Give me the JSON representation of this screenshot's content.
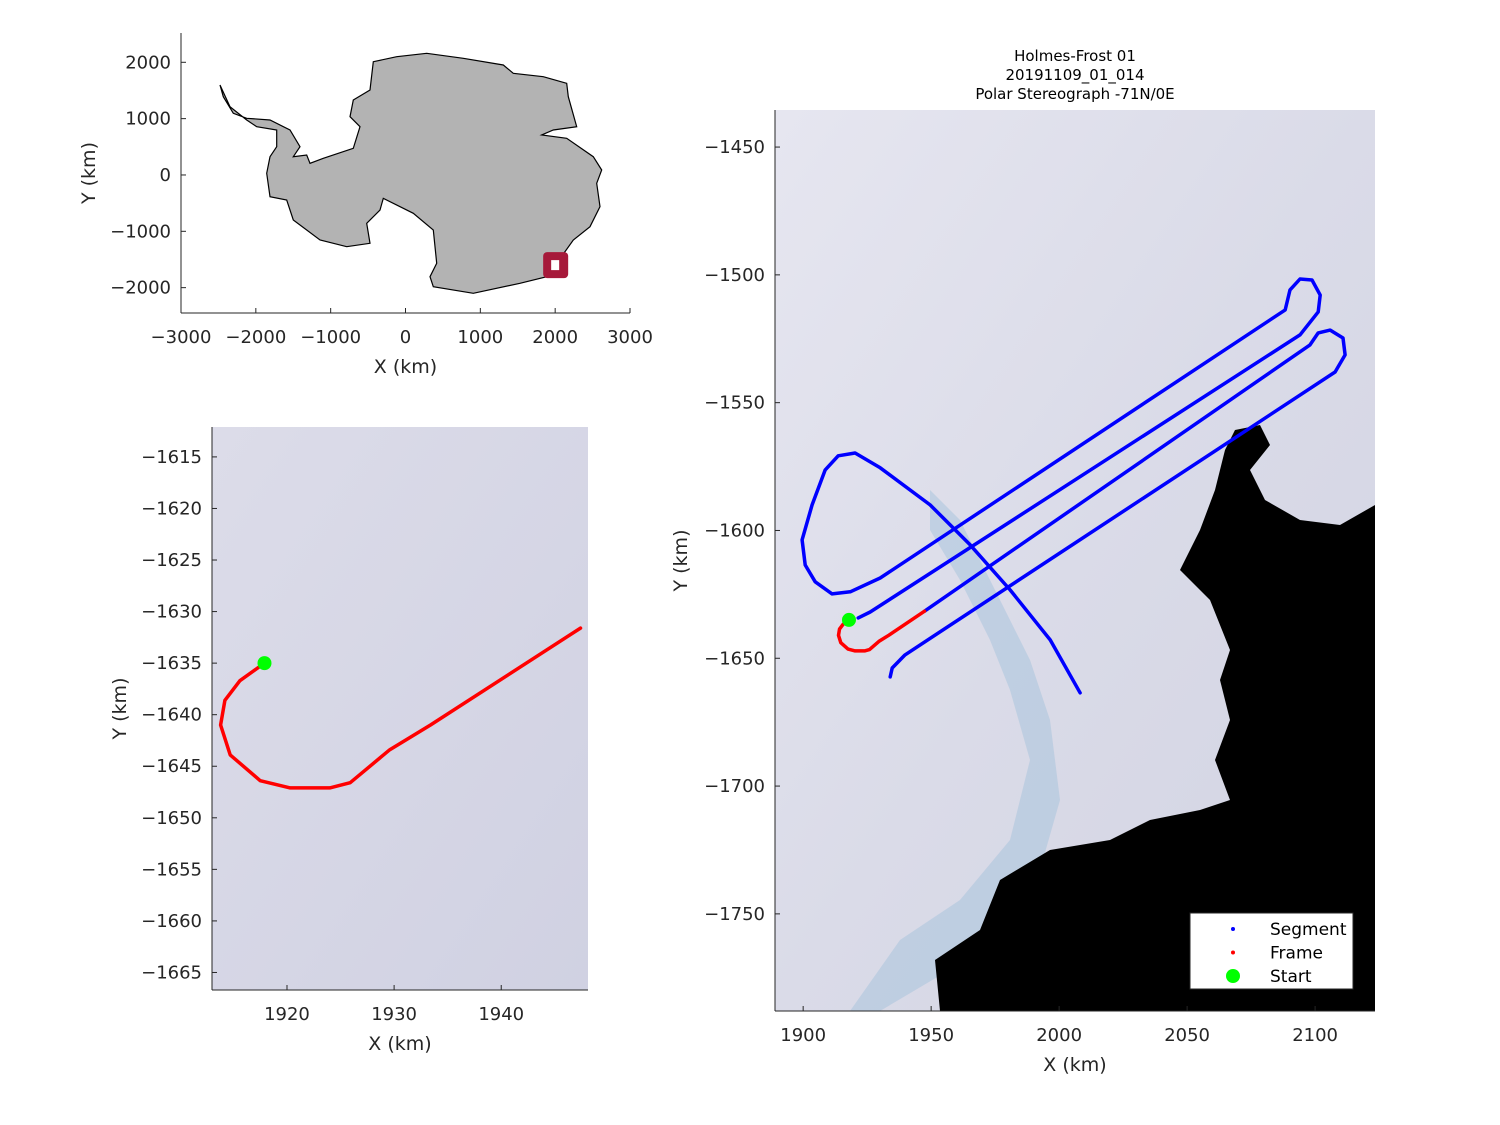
{
  "chart_data": [
    {
      "type": "map-inset",
      "xlabel": "X (km)",
      "ylabel": "Y (km)",
      "xlim": [
        -3000,
        3000
      ],
      "ylim": [
        -2450,
        2520
      ],
      "xticks": [
        -3000,
        -2000,
        -1000,
        0,
        1000,
        2000,
        3000
      ],
      "yticks": [
        2000,
        1000,
        0,
        -1000,
        -2000
      ],
      "land_color": "#b3b3b3",
      "marker": {
        "x": 2000,
        "y": -1600,
        "color": "#a6193a"
      }
    },
    {
      "type": "line",
      "xlabel": "X (km)",
      "ylabel": "Y (km)",
      "xlim": [
        1913,
        1948.1
      ],
      "ylim": [
        -1666.7,
        -1612.1
      ],
      "xticks": [
        1920,
        1930,
        1940
      ],
      "yticks": [
        -1615,
        -1620,
        -1625,
        -1630,
        -1635,
        -1640,
        -1645,
        -1650,
        -1655,
        -1660,
        -1665
      ],
      "background_color": "#d7d8e7",
      "frame": {
        "color": "#ff0000",
        "x": [
          1917.9,
          1915.6,
          1914.2,
          1913.8,
          1914.7,
          1917.5,
          1920.3,
          1924.0,
          1925.9,
          1929.6,
          1933.4,
          1947.4
        ],
        "y": [
          -1635.0,
          -1636.7,
          -1638.6,
          -1641.0,
          -1643.9,
          -1646.4,
          -1647.1,
          -1647.1,
          -1646.6,
          -1643.4,
          -1641.0,
          -1631.6
        ]
      },
      "start": {
        "color": "#00ff00",
        "x": 1917.9,
        "y": -1635.0
      }
    },
    {
      "type": "line",
      "title": [
        "Holmes-Frost 01",
        "20191109_01_014",
        "Polar Stereograph -71N/0E"
      ],
      "xlabel": "X (km)",
      "ylabel": "Y (km)",
      "xlim": [
        1889,
        2123.4
      ],
      "ylim": [
        -1788,
        -1435.5
      ],
      "xticks": [
        1900,
        1950,
        2000,
        2050,
        2100
      ],
      "yticks": [
        -1450,
        -1500,
        -1550,
        -1600,
        -1650,
        -1700,
        -1750
      ],
      "segment": {
        "name": "Segment",
        "color": "#0000ff",
        "parts": [
          {
            "x": [
              2008.2,
              1996.5,
              1980.9,
              1965.2,
              1949.6,
              1930.1,
              1920.3,
              1913.7,
              1908.6,
              1903.5,
              1899.6,
              1900.8,
              1904.7,
              1911.3,
              1918.4,
              1930.1,
              2088.3,
              2090.2,
              2094.1,
              2098.8,
              2102.0,
              2101.2,
              2094.1,
              1926.2,
              1921.5
            ],
            "y": [
              -1663.5,
              -1642.8,
              -1623.3,
              -1605.6,
              -1590.0,
              -1575.5,
              -1569.7,
              -1570.8,
              -1576.3,
              -1590.0,
              -1603.7,
              -1613.5,
              -1620.1,
              -1624.8,
              -1624.0,
              -1618.6,
              -1513.7,
              -1505.9,
              -1501.6,
              -1502.0,
              -1507.9,
              -1514.5,
              -1523.5,
              -1631.9,
              -1634.2
            ]
          },
          {
            "x": [
              1947.4,
              2098.0,
              2101.2,
              2105.9,
              2110.9,
              2111.7,
              2107.8,
              1939.8,
              1934.8,
              1934.0
            ],
            "y": [
              -1631.6,
              -1527.4,
              -1522.7,
              -1521.6,
              -1524.7,
              -1531.3,
              -1538.0,
              -1648.7,
              -1653.8,
              -1657.3
            ]
          }
        ]
      },
      "frame": {
        "name": "Frame",
        "color": "#ff0000",
        "x": [
          1917.9,
          1915.6,
          1914.2,
          1913.8,
          1914.7,
          1917.5,
          1920.3,
          1924.0,
          1925.9,
          1929.6,
          1933.4,
          1947.4
        ],
        "y": [
          -1635.0,
          -1636.7,
          -1638.6,
          -1641.0,
          -1643.9,
          -1646.4,
          -1647.1,
          -1647.1,
          -1646.6,
          -1643.4,
          -1641.0,
          -1631.6
        ]
      },
      "start": {
        "name": "Start",
        "color": "#00ff00",
        "x": 1917.9,
        "y": -1635.0
      },
      "legend": {
        "placement": "bottom-right",
        "entries": [
          "Segment",
          "Frame",
          "Start"
        ]
      }
    }
  ]
}
